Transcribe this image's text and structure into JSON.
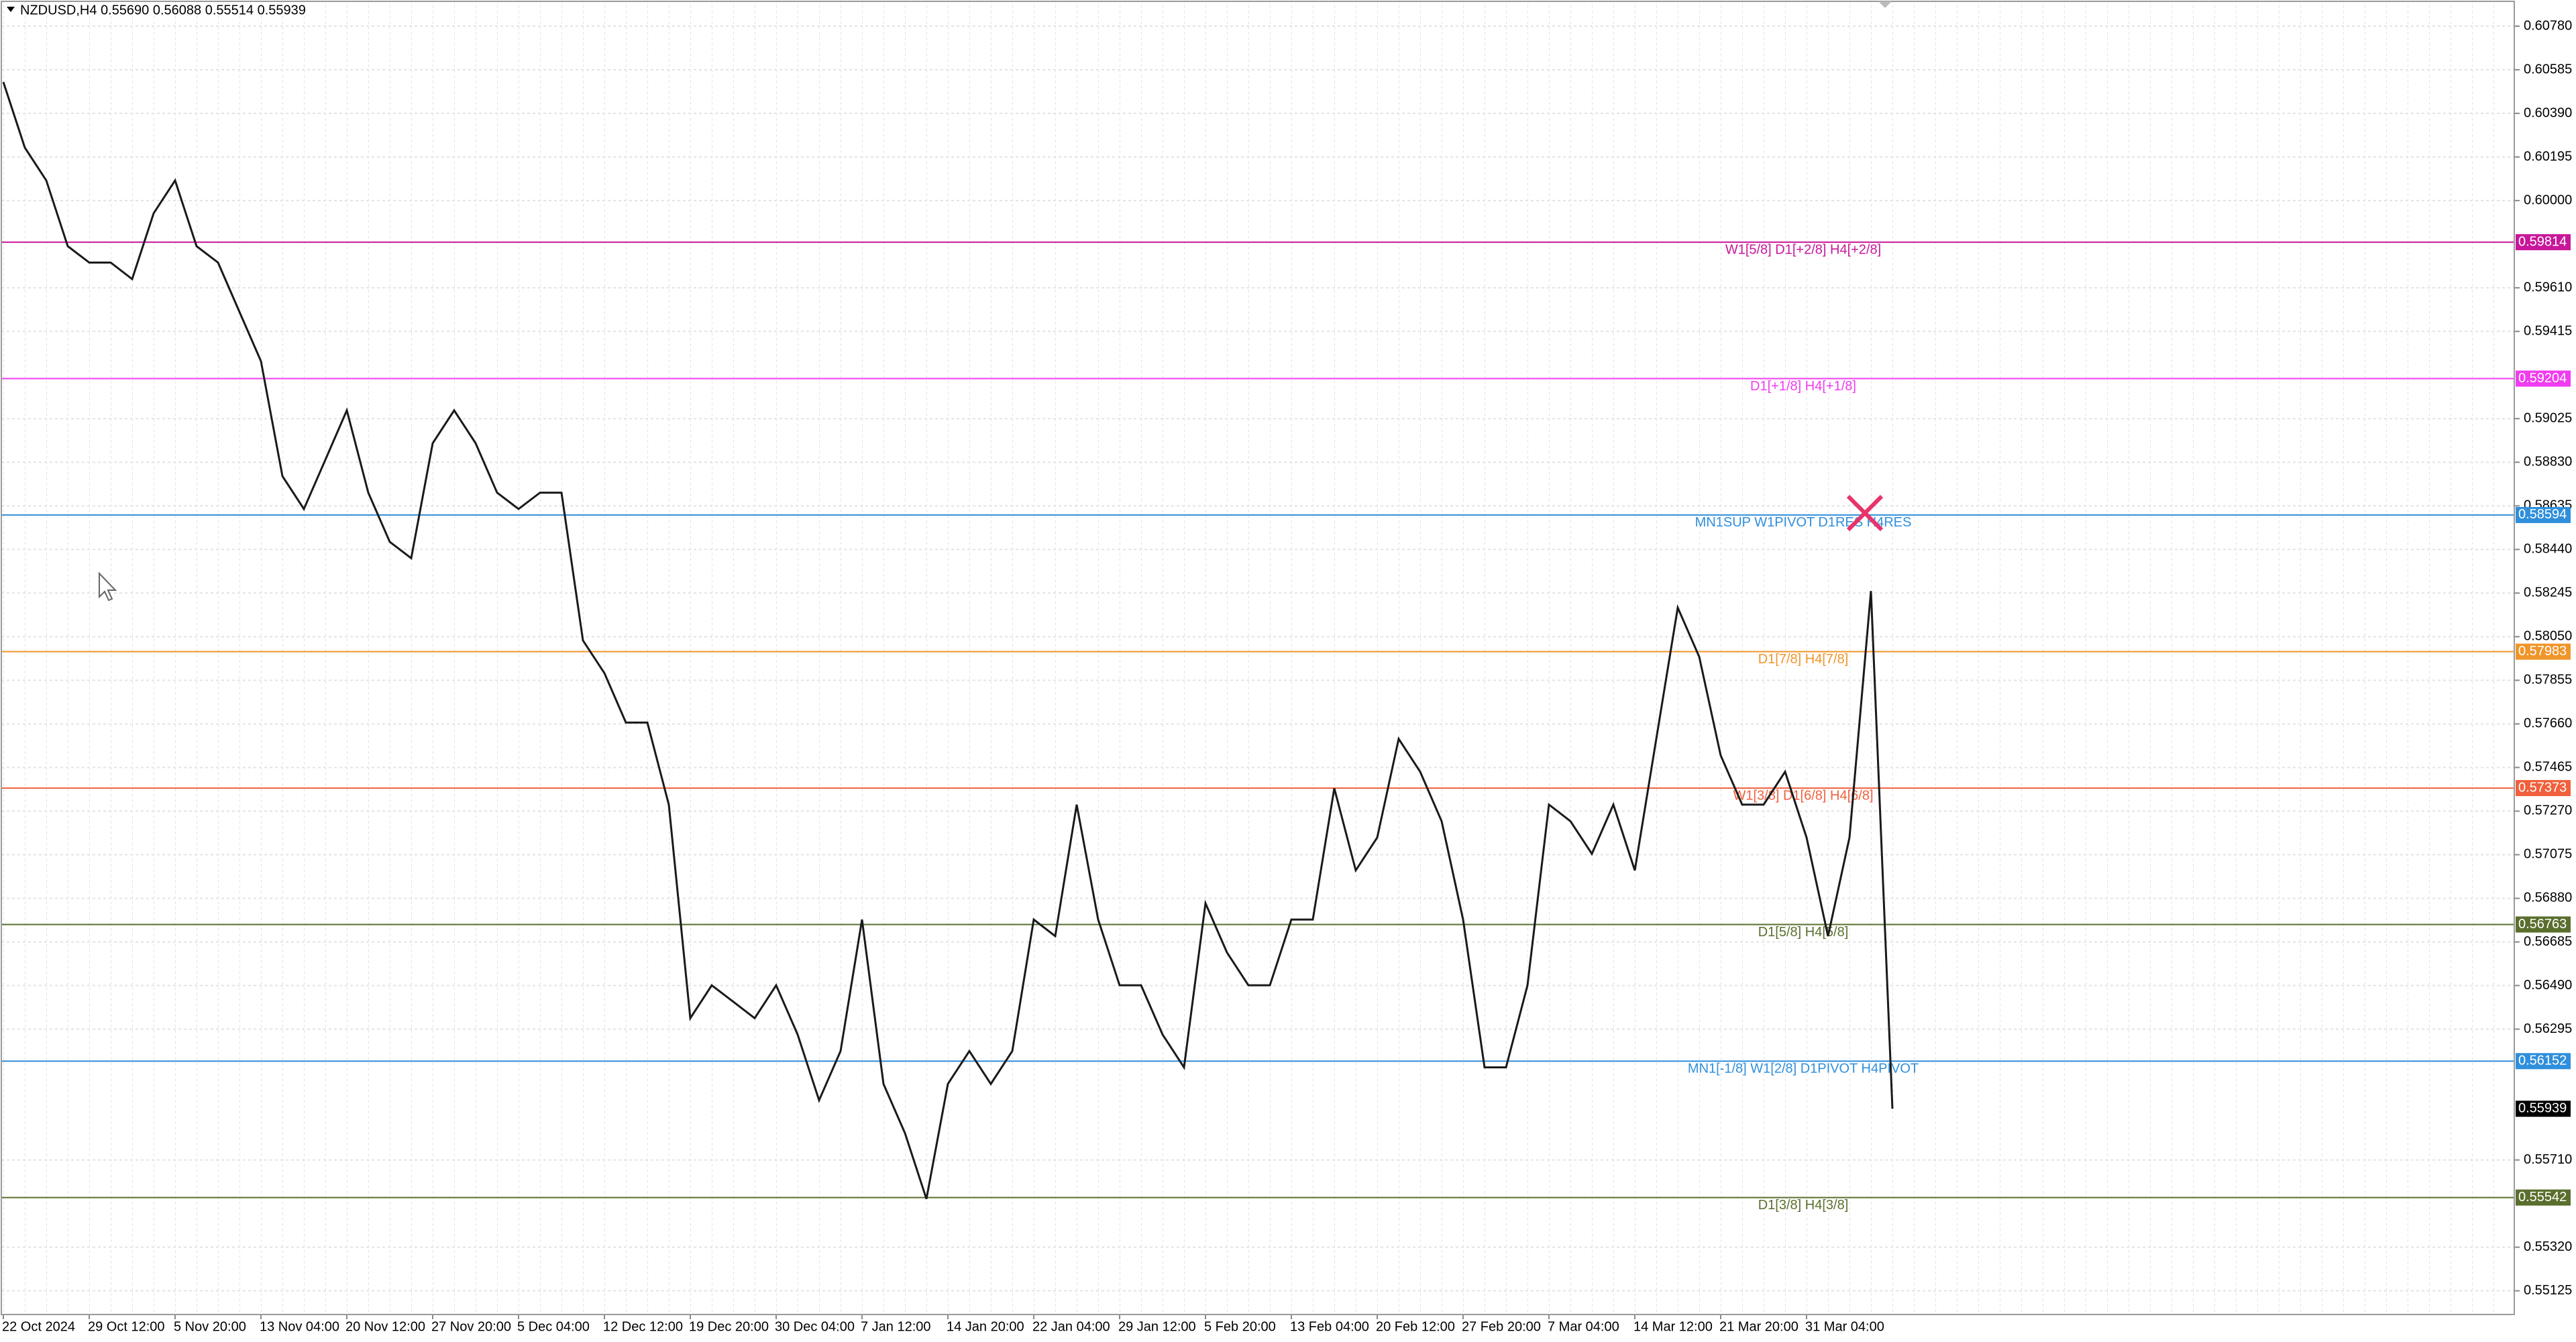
{
  "chart_data": {
    "type": "line",
    "title": "NZDUSD,H4  0.55690 0.56088 0.55514 0.55939",
    "grid": true,
    "categories": [
      "22 Oct 2024",
      null,
      null,
      null,
      "29 Oct 12:00",
      null,
      null,
      null,
      "5 Nov 20:00",
      null,
      null,
      null,
      "13 Nov 04:00",
      null,
      null,
      null,
      "20 Nov 12:00",
      null,
      null,
      null,
      "27 Nov 20:00",
      null,
      null,
      null,
      "5 Dec 04:00",
      null,
      null,
      null,
      "12 Dec 12:00",
      null,
      null,
      null,
      "19 Dec 20:00",
      null,
      null,
      null,
      "30 Dec 04:00",
      null,
      null,
      null,
      "7 Jan 12:00",
      null,
      null,
      null,
      "14 Jan 20:00",
      null,
      null,
      null,
      "22 Jan 04:00",
      null,
      null,
      null,
      "29 Jan 12:00",
      null,
      null,
      null,
      "5 Feb 20:00",
      null,
      null,
      null,
      "13 Feb 04:00",
      null,
      null,
      null,
      "20 Feb 12:00",
      null,
      null,
      null,
      "27 Feb 20:00",
      null,
      null,
      null,
      "7 Mar 04:00",
      null,
      null,
      null,
      "14 Mar 12:00",
      null,
      null,
      null,
      "21 Mar 20:00",
      null,
      null,
      null,
      "31 Mar 04:00",
      null,
      null,
      null,
      null
    ],
    "series": [
      {
        "name": "NZDUSD",
        "color": "#1a1a1a",
        "values": [
          0.6053,
          0.60237,
          0.6009,
          0.59796,
          0.59723,
          0.59723,
          0.59649,
          0.59943,
          0.6009,
          0.59796,
          0.59723,
          0.59502,
          0.59282,
          0.58768,
          0.58621,
          0.58841,
          0.59062,
          0.58694,
          0.58474,
          0.58401,
          0.58915,
          0.59062,
          0.58915,
          0.58694,
          0.58621,
          0.58694,
          0.58694,
          0.58033,
          0.57887,
          0.57666,
          0.57666,
          0.57299,
          0.56344,
          0.56491,
          0.56418,
          0.56344,
          0.56491,
          0.56271,
          0.55977,
          0.56197,
          0.56785,
          0.5605,
          0.5583,
          0.55536,
          0.5605,
          0.56197,
          0.5605,
          0.56197,
          0.56785,
          0.56711,
          0.57299,
          0.56785,
          0.56491,
          0.56491,
          0.56271,
          0.56124,
          0.56858,
          0.56638,
          0.56491,
          0.56491,
          0.56785,
          0.56785,
          0.57372,
          0.57005,
          0.57152,
          0.57593,
          0.57446,
          0.57225,
          0.56785,
          0.56124,
          0.56124,
          0.56491,
          0.57299,
          0.57225,
          0.57079,
          0.57299,
          0.57005,
          0.57593,
          0.5818,
          0.5796,
          0.57519,
          0.57299,
          0.57299,
          0.57446,
          0.57152,
          0.56711,
          0.57152,
          0.58254,
          0.55939
        ]
      }
    ],
    "ylim": [
      0.55022,
      0.60897
    ],
    "yticks": [
      {
        "value": 0.6078,
        "label": "0.60780"
      },
      0.60585,
      {
        "value": 0.6039,
        "label": "0.60390"
      },
      0.60195,
      {
        "value": 0.6,
        "label": "0.60000"
      },
      {
        "value": 0.5961,
        "label": "0.59610"
      },
      0.59415,
      0.59025,
      {
        "value": 0.5883,
        "label": "0.58830"
      },
      0.58635,
      {
        "value": 0.5844,
        "label": "0.58440"
      },
      0.58245,
      {
        "value": 0.5805,
        "label": "0.58050"
      },
      0.57855,
      {
        "value": 0.5766,
        "label": "0.57660"
      },
      0.57465,
      {
        "value": 0.5727,
        "label": "0.57270"
      },
      0.57075,
      {
        "value": 0.5688,
        "label": "0.56880"
      },
      0.56685,
      {
        "value": 0.5649,
        "label": "0.56490"
      },
      0.56295,
      {
        "value": 0.5571,
        "label": "0.55710"
      },
      {
        "value": 0.5532,
        "label": "0.55320"
      },
      0.55125
    ],
    "levels": [
      {
        "value": 0.59814,
        "label": "W1[5/8] D1[+2/8] H4[+2/8]",
        "color": "#c8179a"
      },
      {
        "value": 0.59204,
        "label": "D1[+1/8] H4[+1/8]",
        "color": "#f03cf0"
      },
      {
        "value": 0.58594,
        "label": "MN1SUP W1PIVOT D1RES H4RES",
        "color": "#2f8fdc"
      },
      {
        "value": 0.57983,
        "label": "D1[7/8] H4[7/8]",
        "color": "#f0952a"
      },
      {
        "value": 0.57373,
        "label": "W1[3/8] D1[6/8] H4[6/8]",
        "color": "#f0603c"
      },
      {
        "value": 0.56763,
        "label": "D1[5/8] H4[5/8]",
        "color": "#5a6f2e"
      },
      {
        "value": 0.56152,
        "label": "MN1[-1/8] W1[2/8] D1PIVOT H4PIVOT",
        "color": "#2f8fdc"
      },
      {
        "value": 0.55542,
        "label": "D1[3/8] H4[3/8]",
        "color": "#5a6f2e"
      }
    ],
    "last_price": 0.55939
  }
}
